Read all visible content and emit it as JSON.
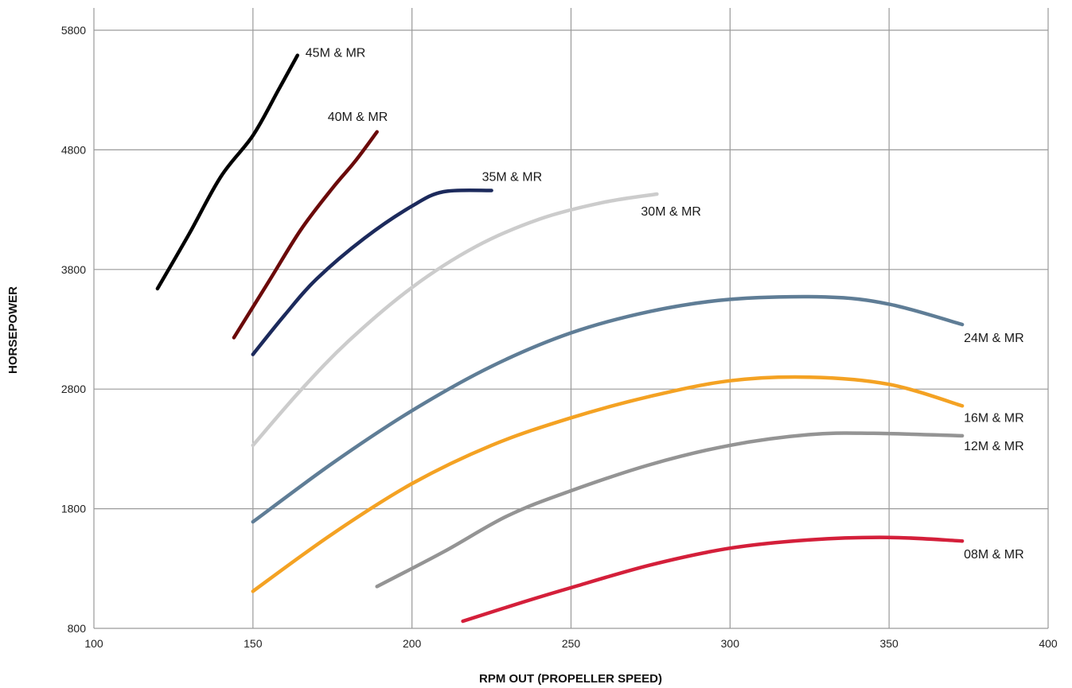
{
  "chart_data": {
    "type": "line",
    "title": "",
    "xlabel": "RPM OUT (PROPELLER SPEED)",
    "ylabel": "HORSEPOWER",
    "xlim": [
      100,
      400
    ],
    "ylim": [
      800,
      5800
    ],
    "xticks": [
      100,
      150,
      200,
      250,
      300,
      350,
      400
    ],
    "yticks": [
      800,
      1800,
      2800,
      3800,
      4800,
      5800
    ],
    "grid": true,
    "legend": "inline labels at curve ends",
    "series": [
      {
        "name": "45M & MR",
        "color": "#000000",
        "points": [
          [
            120,
            3640
          ],
          [
            130,
            4100
          ],
          [
            140,
            4580
          ],
          [
            150,
            4920
          ],
          [
            158,
            5300
          ],
          [
            164,
            5590
          ]
        ]
      },
      {
        "name": "40M & MR",
        "color": "#6b0a0a",
        "points": [
          [
            144,
            3230
          ],
          [
            155,
            3700
          ],
          [
            165,
            4130
          ],
          [
            175,
            4480
          ],
          [
            182,
            4700
          ],
          [
            189,
            4950
          ]
        ]
      },
      {
        "name": "35M & MR",
        "color": "#1c2a5c",
        "points": [
          [
            150,
            3090
          ],
          [
            160,
            3420
          ],
          [
            170,
            3720
          ],
          [
            185,
            4060
          ],
          [
            200,
            4330
          ],
          [
            210,
            4450
          ],
          [
            225,
            4460
          ]
        ]
      },
      {
        "name": "30M & MR",
        "color": "#cccccc",
        "points": [
          [
            150,
            2330
          ],
          [
            165,
            2790
          ],
          [
            180,
            3200
          ],
          [
            200,
            3650
          ],
          [
            220,
            3990
          ],
          [
            240,
            4220
          ],
          [
            260,
            4360
          ],
          [
            277,
            4430
          ]
        ]
      },
      {
        "name": "24M & MR",
        "color": "#5f7d96",
        "points": [
          [
            150,
            1690
          ],
          [
            175,
            2180
          ],
          [
            200,
            2620
          ],
          [
            225,
            2990
          ],
          [
            250,
            3270
          ],
          [
            275,
            3450
          ],
          [
            300,
            3550
          ],
          [
            330,
            3570
          ],
          [
            350,
            3510
          ],
          [
            373,
            3340
          ]
        ]
      },
      {
        "name": "16M & MR",
        "color": "#f4a223",
        "points": [
          [
            150,
            1110
          ],
          [
            175,
            1590
          ],
          [
            200,
            2010
          ],
          [
            225,
            2330
          ],
          [
            250,
            2560
          ],
          [
            275,
            2740
          ],
          [
            300,
            2870
          ],
          [
            325,
            2900
          ],
          [
            350,
            2840
          ],
          [
            373,
            2660
          ]
        ]
      },
      {
        "name": "12M & MR",
        "color": "#949494",
        "points": [
          [
            189,
            1150
          ],
          [
            210,
            1440
          ],
          [
            230,
            1740
          ],
          [
            250,
            1950
          ],
          [
            275,
            2170
          ],
          [
            300,
            2330
          ],
          [
            325,
            2420
          ],
          [
            345,
            2430
          ],
          [
            373,
            2410
          ]
        ]
      },
      {
        "name": "08M & MR",
        "color": "#d41f3a",
        "points": [
          [
            216,
            860
          ],
          [
            235,
            1020
          ],
          [
            250,
            1140
          ],
          [
            275,
            1330
          ],
          [
            300,
            1470
          ],
          [
            325,
            1540
          ],
          [
            350,
            1560
          ],
          [
            373,
            1530
          ]
        ]
      }
    ]
  }
}
